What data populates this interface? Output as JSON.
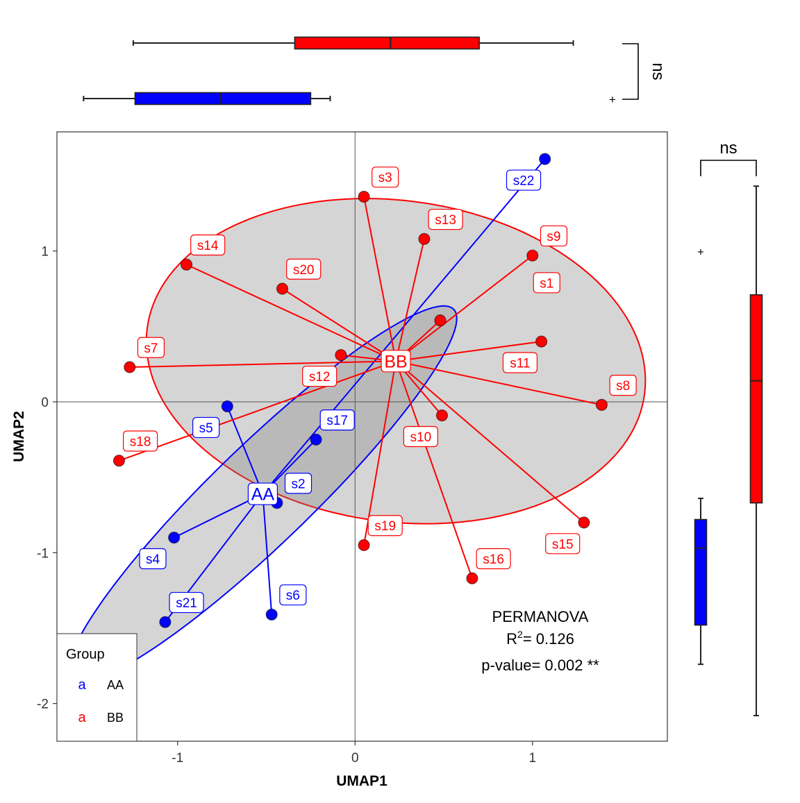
{
  "chart_data": {
    "type": "scatter",
    "xlabel": "UMAP1",
    "ylabel": "UMAP2",
    "xlim": [
      -1.68,
      1.76
    ],
    "ylim": [
      -2.25,
      1.79
    ],
    "x_ticks": [
      -1,
      0,
      1
    ],
    "y_ticks": [
      -2,
      -1,
      0,
      1
    ],
    "grid": false,
    "reference_lines": {
      "x": 0,
      "y": 0
    },
    "legend": {
      "title": "Group",
      "placement": "bottom-left",
      "glyph": "a",
      "entries": [
        {
          "label": "AA",
          "color": "#0000ff"
        },
        {
          "label": "BB",
          "color": "#ff0000"
        }
      ]
    },
    "annotation": {
      "line1": "PERMANOVA",
      "r2_prefix": "R",
      "r2_sup": "2",
      "r2_value": "= 0.126",
      "pvalue": "p-value= 0.002 **"
    },
    "groups": [
      {
        "name": "AA",
        "color": "#0000ff",
        "centroid": {
          "x": -0.52,
          "y": -0.61
        },
        "ellipse": {
          "cx": -0.52,
          "cy": -0.61,
          "a": 1.63,
          "b": 0.3,
          "angle_deg": 49
        },
        "points": [
          {
            "label": "s2",
            "x": -0.44,
            "y": -0.67
          },
          {
            "label": "s4",
            "x": -1.02,
            "y": -0.9
          },
          {
            "label": "s5",
            "x": -0.72,
            "y": -0.03
          },
          {
            "label": "s6",
            "x": -0.47,
            "y": -1.41
          },
          {
            "label": "s17",
            "x": -0.22,
            "y": -0.25
          },
          {
            "label": "s21",
            "x": -1.07,
            "y": -1.46
          },
          {
            "label": "s22",
            "x": 1.07,
            "y": 1.61
          }
        ]
      },
      {
        "name": "BB",
        "color": "#ff0000",
        "centroid": {
          "x": 0.23,
          "y": 0.27
        },
        "ellipse": {
          "cx": 0.23,
          "cy": 0.27,
          "a": 1.42,
          "b": 1.06,
          "angle_deg": -12
        },
        "points": [
          {
            "label": "s1",
            "x": 0.48,
            "y": 0.54
          },
          {
            "label": "s3",
            "x": 0.05,
            "y": 1.36
          },
          {
            "label": "s7",
            "x": -1.27,
            "y": 0.23
          },
          {
            "label": "s8",
            "x": 1.39,
            "y": -0.02
          },
          {
            "label": "s9",
            "x": 1.0,
            "y": 0.97
          },
          {
            "label": "s10",
            "x": 0.49,
            "y": -0.09
          },
          {
            "label": "s11",
            "x": 1.05,
            "y": 0.4
          },
          {
            "label": "s12",
            "x": -0.08,
            "y": 0.31
          },
          {
            "label": "s13",
            "x": 0.39,
            "y": 1.08
          },
          {
            "label": "s14",
            "x": -0.95,
            "y": 0.91
          },
          {
            "label": "s15",
            "x": 1.29,
            "y": -0.8
          },
          {
            "label": "s16",
            "x": 0.66,
            "y": -1.17
          },
          {
            "label": "s18",
            "x": -1.33,
            "y": -0.39
          },
          {
            "label": "s19",
            "x": 0.05,
            "y": -0.95
          },
          {
            "label": "s20",
            "x": -0.41,
            "y": 0.75
          }
        ]
      }
    ],
    "marginal_boxplots": {
      "significance_label": "ns",
      "outlier_glyph": "+",
      "x": [
        {
          "group": "AA",
          "color": "#0000ff",
          "min": -1.53,
          "q1": -1.24,
          "median": -0.76,
          "q3": -0.25,
          "max": -0.14,
          "outliers": [
            1.45
          ]
        },
        {
          "group": "BB",
          "color": "#ff0000",
          "min": -1.25,
          "q1": -0.34,
          "median": 0.2,
          "q3": 0.7,
          "max": 1.23,
          "outliers": []
        }
      ],
      "y": [
        {
          "group": "AA",
          "color": "#0000ff",
          "min": -1.74,
          "q1": -1.48,
          "median": -0.97,
          "q3": -0.78,
          "max": -0.64,
          "outliers": [
            1.0
          ]
        },
        {
          "group": "BB",
          "color": "#ff0000",
          "min": -2.08,
          "q1": -0.67,
          "median": 0.14,
          "q3": 0.71,
          "max": 1.43,
          "outliers": []
        }
      ]
    }
  }
}
